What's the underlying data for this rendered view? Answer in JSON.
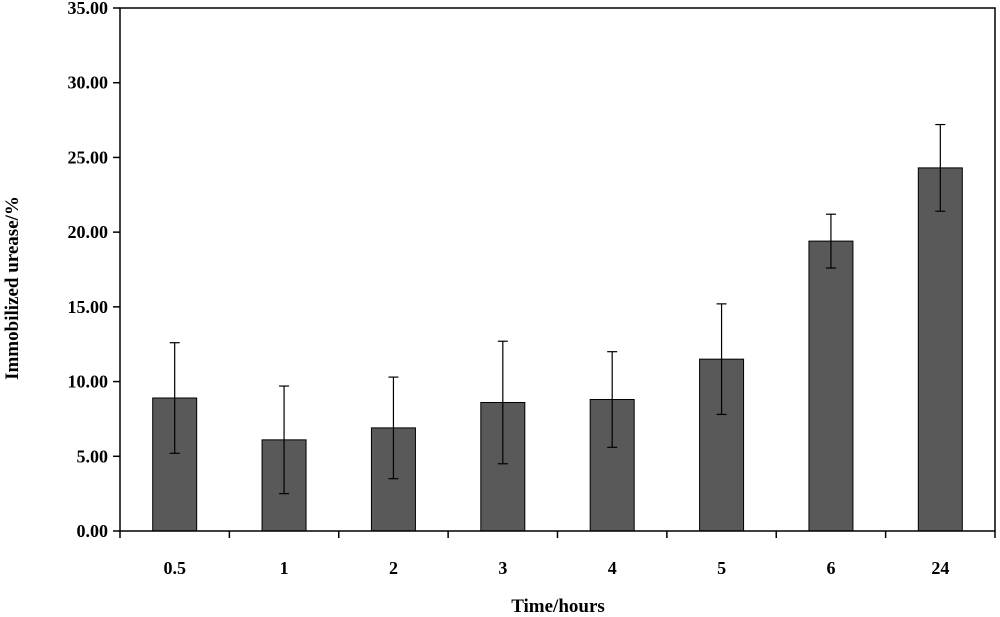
{
  "chart_data": {
    "type": "bar",
    "title": "",
    "xlabel": "Time/hours",
    "ylabel": "Immobilized urease/%",
    "ylim": [
      0,
      35
    ],
    "yticks": [
      "0.00",
      "5.00",
      "10.00",
      "15.00",
      "20.00",
      "25.00",
      "30.00",
      "35.00"
    ],
    "categories": [
      "0.5",
      "1",
      "2",
      "3",
      "4",
      "5",
      "6",
      "24"
    ],
    "values": [
      8.9,
      6.1,
      6.9,
      8.6,
      8.8,
      11.5,
      19.4,
      24.3
    ],
    "errors": [
      3.7,
      3.6,
      3.4,
      4.1,
      3.2,
      3.7,
      1.8,
      2.9
    ],
    "grid": false,
    "legend": "none",
    "bar_color": "#595959",
    "error_bar_color": "#000000"
  }
}
